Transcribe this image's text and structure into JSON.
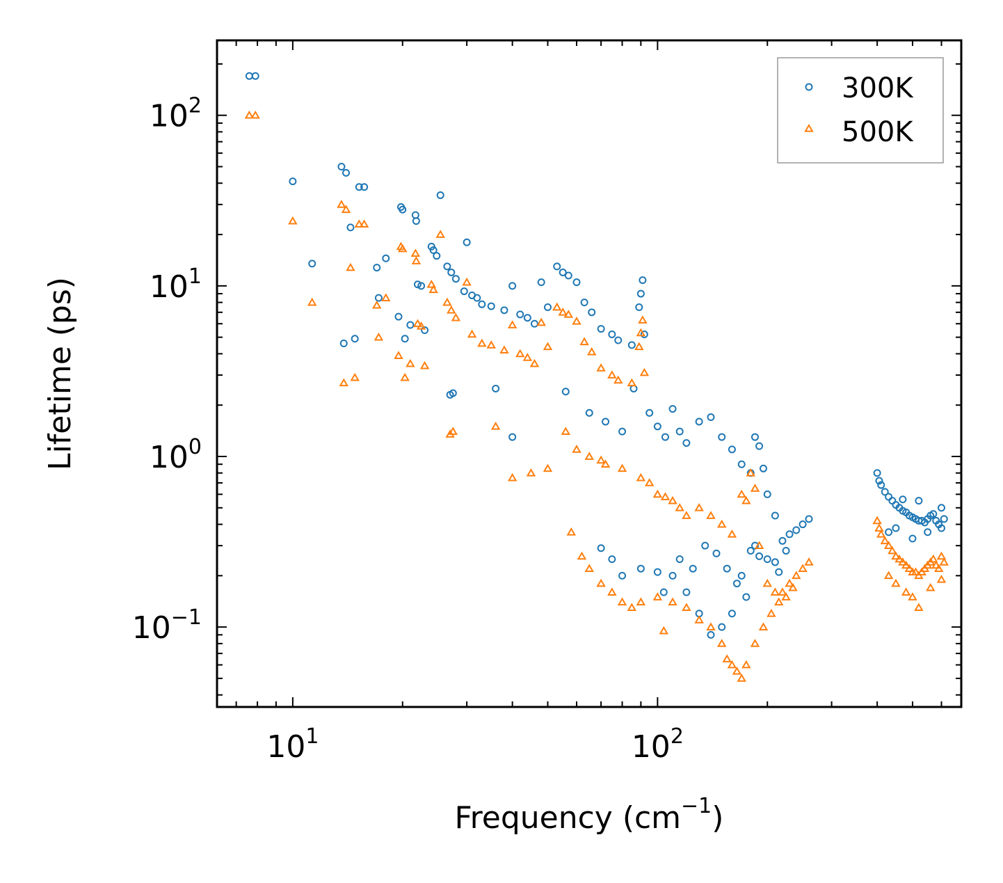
{
  "chart_data": {
    "type": "scatter",
    "title": "",
    "xlabel": "Frequency (cm",
    "xlabel_sup": "−1",
    "xlabel_suffix": ")",
    "ylabel": "Lifetime (ps)",
    "xscale": "log",
    "yscale": "log",
    "xlim": [
      6.2,
      680
    ],
    "ylim": [
      0.034,
      275
    ],
    "x_ticks": [
      {
        "value": 10,
        "base": "10",
        "exp": "1"
      },
      {
        "value": 100,
        "base": "10",
        "exp": "2"
      }
    ],
    "y_ticks": [
      {
        "value": 100,
        "base": "10",
        "exp": "2"
      },
      {
        "value": 10,
        "base": "10",
        "exp": "1"
      },
      {
        "value": 1,
        "base": "10",
        "exp": "0"
      },
      {
        "value": 0.1,
        "base": "10",
        "exp": "−1"
      }
    ],
    "legend_position": "top-right",
    "series": [
      {
        "name": "300K",
        "marker": "circle",
        "color": "#1f77b4",
        "points": [
          [
            7.6,
            170
          ],
          [
            7.9,
            170
          ],
          [
            10,
            41
          ],
          [
            11.3,
            13.5
          ],
          [
            13.6,
            50
          ],
          [
            14,
            46
          ],
          [
            14.4,
            22
          ],
          [
            15.2,
            38
          ],
          [
            15.7,
            38
          ],
          [
            13.8,
            4.6
          ],
          [
            14.8,
            4.9
          ],
          [
            17,
            12.8
          ],
          [
            17.2,
            8.5
          ],
          [
            18,
            14.5
          ],
          [
            19.5,
            6.6
          ],
          [
            19.8,
            29
          ],
          [
            20,
            28
          ],
          [
            20.3,
            4.9
          ],
          [
            21,
            5.9
          ],
          [
            21.7,
            26
          ],
          [
            21.8,
            24
          ],
          [
            22,
            10.2
          ],
          [
            22.5,
            10
          ],
          [
            23,
            5.5
          ],
          [
            24,
            17
          ],
          [
            24.3,
            16.2
          ],
          [
            24.8,
            15
          ],
          [
            25.4,
            34
          ],
          [
            26.5,
            13
          ],
          [
            27.2,
            12
          ],
          [
            28,
            11
          ],
          [
            29.5,
            9.3
          ],
          [
            30,
            18
          ],
          [
            27,
            2.3
          ],
          [
            27.5,
            2.35
          ],
          [
            31,
            8.8
          ],
          [
            32,
            8.5
          ],
          [
            33,
            7.8
          ],
          [
            35,
            7.6
          ],
          [
            36,
            2.5
          ],
          [
            38,
            7.2
          ],
          [
            40,
            10
          ],
          [
            42,
            6.8
          ],
          [
            44,
            6.5
          ],
          [
            46,
            6
          ],
          [
            48,
            10.5
          ],
          [
            50,
            7.5
          ],
          [
            53,
            13
          ],
          [
            55,
            12
          ],
          [
            57,
            11.5
          ],
          [
            60,
            10.5
          ],
          [
            63,
            8
          ],
          [
            66,
            7
          ],
          [
            70,
            5.6
          ],
          [
            75,
            5.2
          ],
          [
            78,
            4.8
          ],
          [
            85,
            4.5
          ],
          [
            89,
            7.5
          ],
          [
            90,
            9
          ],
          [
            91,
            10.8
          ],
          [
            92,
            5.2
          ],
          [
            86,
            2.5
          ],
          [
            40,
            1.3
          ],
          [
            56,
            2.4
          ],
          [
            65,
            1.8
          ],
          [
            72,
            1.6
          ],
          [
            80,
            1.4
          ],
          [
            95,
            1.8
          ],
          [
            100,
            1.5
          ],
          [
            105,
            1.3
          ],
          [
            110,
            1.9
          ],
          [
            115,
            1.4
          ],
          [
            120,
            1.2
          ],
          [
            130,
            1.6
          ],
          [
            140,
            1.7
          ],
          [
            150,
            1.3
          ],
          [
            160,
            1.1
          ],
          [
            170,
            0.9
          ],
          [
            180,
            0.8
          ],
          [
            185,
            1.3
          ],
          [
            190,
            1.15
          ],
          [
            195,
            0.85
          ],
          [
            200,
            0.6
          ],
          [
            210,
            0.45
          ],
          [
            220,
            0.32
          ],
          [
            230,
            0.35
          ],
          [
            240,
            0.37
          ],
          [
            250,
            0.4
          ],
          [
            260,
            0.43
          ],
          [
            180,
            0.28
          ],
          [
            190,
            0.26
          ],
          [
            200,
            0.25
          ],
          [
            210,
            0.24
          ],
          [
            215,
            0.21
          ],
          [
            170,
            0.2
          ],
          [
            160,
            0.12
          ],
          [
            150,
            0.1
          ],
          [
            140,
            0.09
          ],
          [
            130,
            0.12
          ],
          [
            120,
            0.16
          ],
          [
            110,
            0.2
          ],
          [
            100,
            0.21
          ],
          [
            90,
            0.22
          ],
          [
            80,
            0.2
          ],
          [
            75,
            0.25
          ],
          [
            70,
            0.29
          ],
          [
            104,
            0.16
          ],
          [
            115,
            0.25
          ],
          [
            125,
            0.22
          ],
          [
            135,
            0.3
          ],
          [
            145,
            0.27
          ],
          [
            155,
            0.22
          ],
          [
            165,
            0.18
          ],
          [
            175,
            0.15
          ],
          [
            185,
            0.3
          ],
          [
            225,
            0.28
          ],
          [
            400,
            0.8
          ],
          [
            405,
            0.72
          ],
          [
            410,
            0.68
          ],
          [
            420,
            0.62
          ],
          [
            430,
            0.58
          ],
          [
            440,
            0.55
          ],
          [
            450,
            0.52
          ],
          [
            460,
            0.5
          ],
          [
            470,
            0.48
          ],
          [
            480,
            0.47
          ],
          [
            490,
            0.45
          ],
          [
            500,
            0.44
          ],
          [
            510,
            0.43
          ],
          [
            520,
            0.42
          ],
          [
            530,
            0.42
          ],
          [
            540,
            0.41
          ],
          [
            550,
            0.43
          ],
          [
            560,
            0.45
          ],
          [
            570,
            0.46
          ],
          [
            580,
            0.42
          ],
          [
            590,
            0.4
          ],
          [
            600,
            0.5
          ],
          [
            610,
            0.43
          ],
          [
            600,
            0.38
          ],
          [
            470,
            0.56
          ],
          [
            520,
            0.55
          ],
          [
            430,
            0.36
          ],
          [
            450,
            0.38
          ],
          [
            500,
            0.33
          ],
          [
            550,
            0.36
          ]
        ]
      },
      {
        "name": "500K",
        "marker": "triangle",
        "color": "#ff7f0e",
        "points": [
          [
            7.6,
            100
          ],
          [
            7.9,
            100
          ],
          [
            10,
            24
          ],
          [
            11.3,
            8
          ],
          [
            13.6,
            30
          ],
          [
            14,
            28
          ],
          [
            14.4,
            12.8
          ],
          [
            15.2,
            23
          ],
          [
            15.7,
            23
          ],
          [
            13.8,
            2.7
          ],
          [
            14.8,
            2.9
          ],
          [
            17,
            7.7
          ],
          [
            17.2,
            5
          ],
          [
            18,
            8.5
          ],
          [
            19.5,
            3.9
          ],
          [
            19.8,
            17
          ],
          [
            20,
            16.5
          ],
          [
            20.3,
            2.9
          ],
          [
            21,
            3.5
          ],
          [
            21.7,
            15.5
          ],
          [
            21.8,
            14
          ],
          [
            22,
            6
          ],
          [
            22.5,
            5.8
          ],
          [
            23,
            3.4
          ],
          [
            24,
            10.2
          ],
          [
            24.3,
            9.5
          ],
          [
            25.4,
            20
          ],
          [
            26.5,
            8
          ],
          [
            27.2,
            7.2
          ],
          [
            28,
            6.5
          ],
          [
            30,
            10.5
          ],
          [
            27,
            1.35
          ],
          [
            27.5,
            1.4
          ],
          [
            31,
            5.2
          ],
          [
            33,
            4.6
          ],
          [
            35,
            4.5
          ],
          [
            36,
            1.5
          ],
          [
            38,
            4.2
          ],
          [
            40,
            5.9
          ],
          [
            42,
            4
          ],
          [
            44,
            3.8
          ],
          [
            46,
            3.5
          ],
          [
            48,
            6.1
          ],
          [
            50,
            4.4
          ],
          [
            53,
            7.5
          ],
          [
            55,
            7
          ],
          [
            57,
            6.8
          ],
          [
            60,
            6.2
          ],
          [
            63,
            4.7
          ],
          [
            66,
            4.1
          ],
          [
            70,
            3.3
          ],
          [
            75,
            3
          ],
          [
            78,
            2.8
          ],
          [
            85,
            2.7
          ],
          [
            89,
            4.4
          ],
          [
            90,
            5.3
          ],
          [
            91,
            6.3
          ],
          [
            92,
            3.1
          ],
          [
            40,
            0.75
          ],
          [
            45,
            0.8
          ],
          [
            50,
            0.85
          ],
          [
            56,
            1.4
          ],
          [
            60,
            1.1
          ],
          [
            65,
            1
          ],
          [
            70,
            0.95
          ],
          [
            72,
            0.9
          ],
          [
            80,
            0.85
          ],
          [
            90,
            0.75
          ],
          [
            95,
            0.7
          ],
          [
            100,
            0.6
          ],
          [
            105,
            0.58
          ],
          [
            110,
            0.55
          ],
          [
            115,
            0.5
          ],
          [
            120,
            0.45
          ],
          [
            130,
            0.5
          ],
          [
            140,
            0.45
          ],
          [
            150,
            0.4
          ],
          [
            160,
            0.35
          ],
          [
            170,
            0.6
          ],
          [
            175,
            0.55
          ],
          [
            180,
            0.8
          ],
          [
            185,
            0.65
          ],
          [
            190,
            0.3
          ],
          [
            200,
            0.18
          ],
          [
            210,
            0.16
          ],
          [
            220,
            0.16
          ],
          [
            230,
            0.18
          ],
          [
            240,
            0.2
          ],
          [
            250,
            0.22
          ],
          [
            260,
            0.24
          ],
          [
            150,
            0.08
          ],
          [
            155,
            0.065
          ],
          [
            160,
            0.06
          ],
          [
            165,
            0.055
          ],
          [
            170,
            0.05
          ],
          [
            175,
            0.06
          ],
          [
            140,
            0.1
          ],
          [
            130,
            0.11
          ],
          [
            120,
            0.13
          ],
          [
            110,
            0.14
          ],
          [
            104,
            0.095
          ],
          [
            100,
            0.15
          ],
          [
            90,
            0.14
          ],
          [
            85,
            0.13
          ],
          [
            80,
            0.14
          ],
          [
            75,
            0.16
          ],
          [
            70,
            0.18
          ],
          [
            65,
            0.22
          ],
          [
            62,
            0.26
          ],
          [
            58,
            0.36
          ],
          [
            185,
            0.08
          ],
          [
            195,
            0.1
          ],
          [
            205,
            0.12
          ],
          [
            215,
            0.14
          ],
          [
            225,
            0.15
          ],
          [
            235,
            0.17
          ],
          [
            400,
            0.42
          ],
          [
            405,
            0.38
          ],
          [
            410,
            0.35
          ],
          [
            420,
            0.32
          ],
          [
            430,
            0.3
          ],
          [
            440,
            0.28
          ],
          [
            450,
            0.26
          ],
          [
            460,
            0.25
          ],
          [
            470,
            0.24
          ],
          [
            480,
            0.23
          ],
          [
            490,
            0.22
          ],
          [
            500,
            0.21
          ],
          [
            510,
            0.21
          ],
          [
            520,
            0.2
          ],
          [
            530,
            0.21
          ],
          [
            540,
            0.22
          ],
          [
            550,
            0.23
          ],
          [
            560,
            0.24
          ],
          [
            570,
            0.25
          ],
          [
            580,
            0.23
          ],
          [
            590,
            0.22
          ],
          [
            600,
            0.26
          ],
          [
            610,
            0.24
          ],
          [
            500,
            0.15
          ],
          [
            520,
            0.13
          ],
          [
            480,
            0.16
          ],
          [
            450,
            0.18
          ],
          [
            560,
            0.17
          ],
          [
            600,
            0.19
          ],
          [
            430,
            0.2
          ]
        ]
      }
    ]
  }
}
